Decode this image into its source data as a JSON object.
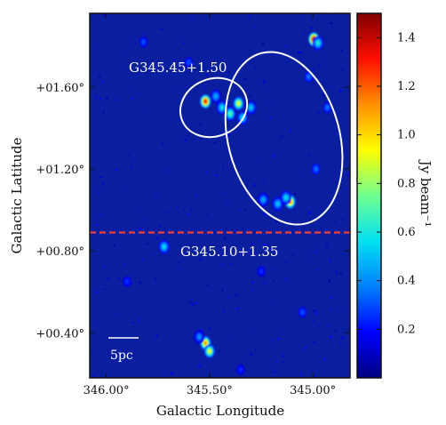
{
  "chart_data": {
    "type": "heatmap",
    "title": "",
    "xlabel": "Galactic Longitude",
    "ylabel": "Galactic Latitude",
    "xlim": [
      346.08,
      344.82
    ],
    "ylim": [
      0.18,
      1.96
    ],
    "x_ticks": [
      {
        "value": 346.0,
        "label": "346.00°"
      },
      {
        "value": 345.5,
        "label": "345.50°"
      },
      {
        "value": 345.0,
        "label": "345.00°"
      }
    ],
    "y_ticks": [
      {
        "value": 1.6,
        "label": "+01.60°"
      },
      {
        "value": 1.2,
        "label": "+01.20°"
      },
      {
        "value": 0.8,
        "label": "+00.80°"
      },
      {
        "value": 0.4,
        "label": "+00.40°"
      }
    ],
    "colorbar": {
      "label": "Jy beam⁻¹",
      "range": [
        0.0,
        1.5
      ],
      "ticks": [
        {
          "value": 0.2,
          "label": "0.2"
        },
        {
          "value": 0.4,
          "label": "0.4"
        },
        {
          "value": 0.6,
          "label": "0.6"
        },
        {
          "value": 0.8,
          "label": "0.8"
        },
        {
          "value": 1.0,
          "label": "1.0"
        },
        {
          "value": 1.2,
          "label": "1.2"
        },
        {
          "value": 1.4,
          "label": "1.4"
        }
      ],
      "colors": [
        "#000080",
        "#0000ff",
        "#0080ff",
        "#00e0f0",
        "#70ff90",
        "#ffff00",
        "#ff9000",
        "#ff1000",
        "#800000"
      ]
    },
    "background_color": "#0a1fa0",
    "regions": [
      {
        "label": "G345.45+1.50",
        "ellipses": [
          {
            "cx": 345.48,
            "cy": 1.5,
            "rx": 0.165,
            "ry": 0.14,
            "angle": -22
          },
          {
            "cx": 345.14,
            "cy": 1.35,
            "rx": 0.27,
            "ry": 0.43,
            "angle": -15
          }
        ]
      },
      {
        "label": "G345.10+1.35"
      }
    ],
    "divider": {
      "b": 0.89,
      "color": "#e23b3b",
      "style": "dashed"
    },
    "scalebar": {
      "label": "5pc"
    },
    "sources": [
      {
        "l": 344.995,
        "b": 1.833,
        "peak": 1.45
      },
      {
        "l": 344.975,
        "b": 1.815,
        "peak": 0.6
      },
      {
        "l": 345.52,
        "b": 1.53,
        "peak": 1.3
      },
      {
        "l": 345.47,
        "b": 1.555,
        "peak": 0.45
      },
      {
        "l": 345.44,
        "b": 1.5,
        "peak": 0.55
      },
      {
        "l": 345.4,
        "b": 1.47,
        "peak": 0.7
      },
      {
        "l": 345.36,
        "b": 1.52,
        "peak": 0.9
      },
      {
        "l": 345.34,
        "b": 1.45,
        "peak": 0.55
      },
      {
        "l": 345.3,
        "b": 1.5,
        "peak": 0.5
      },
      {
        "l": 345.02,
        "b": 1.65,
        "peak": 0.35
      },
      {
        "l": 344.93,
        "b": 1.5,
        "peak": 0.35
      },
      {
        "l": 345.24,
        "b": 1.05,
        "peak": 0.45
      },
      {
        "l": 345.17,
        "b": 1.03,
        "peak": 0.5
      },
      {
        "l": 345.11,
        "b": 1.04,
        "peak": 1.15
      },
      {
        "l": 345.13,
        "b": 1.06,
        "peak": 0.55
      },
      {
        "l": 344.985,
        "b": 1.2,
        "peak": 0.35
      },
      {
        "l": 345.72,
        "b": 0.82,
        "peak": 0.55
      },
      {
        "l": 345.52,
        "b": 0.35,
        "peak": 1.1
      },
      {
        "l": 345.5,
        "b": 0.31,
        "peak": 0.9
      },
      {
        "l": 345.55,
        "b": 0.38,
        "peak": 0.4
      },
      {
        "l": 345.82,
        "b": 1.82,
        "peak": 0.3
      },
      {
        "l": 345.6,
        "b": 1.72,
        "peak": 0.3
      },
      {
        "l": 345.9,
        "b": 0.65,
        "peak": 0.25
      },
      {
        "l": 345.25,
        "b": 0.7,
        "peak": 0.25
      },
      {
        "l": 345.05,
        "b": 0.5,
        "peak": 0.3
      },
      {
        "l": 345.35,
        "b": 0.22,
        "peak": 0.25
      }
    ]
  }
}
